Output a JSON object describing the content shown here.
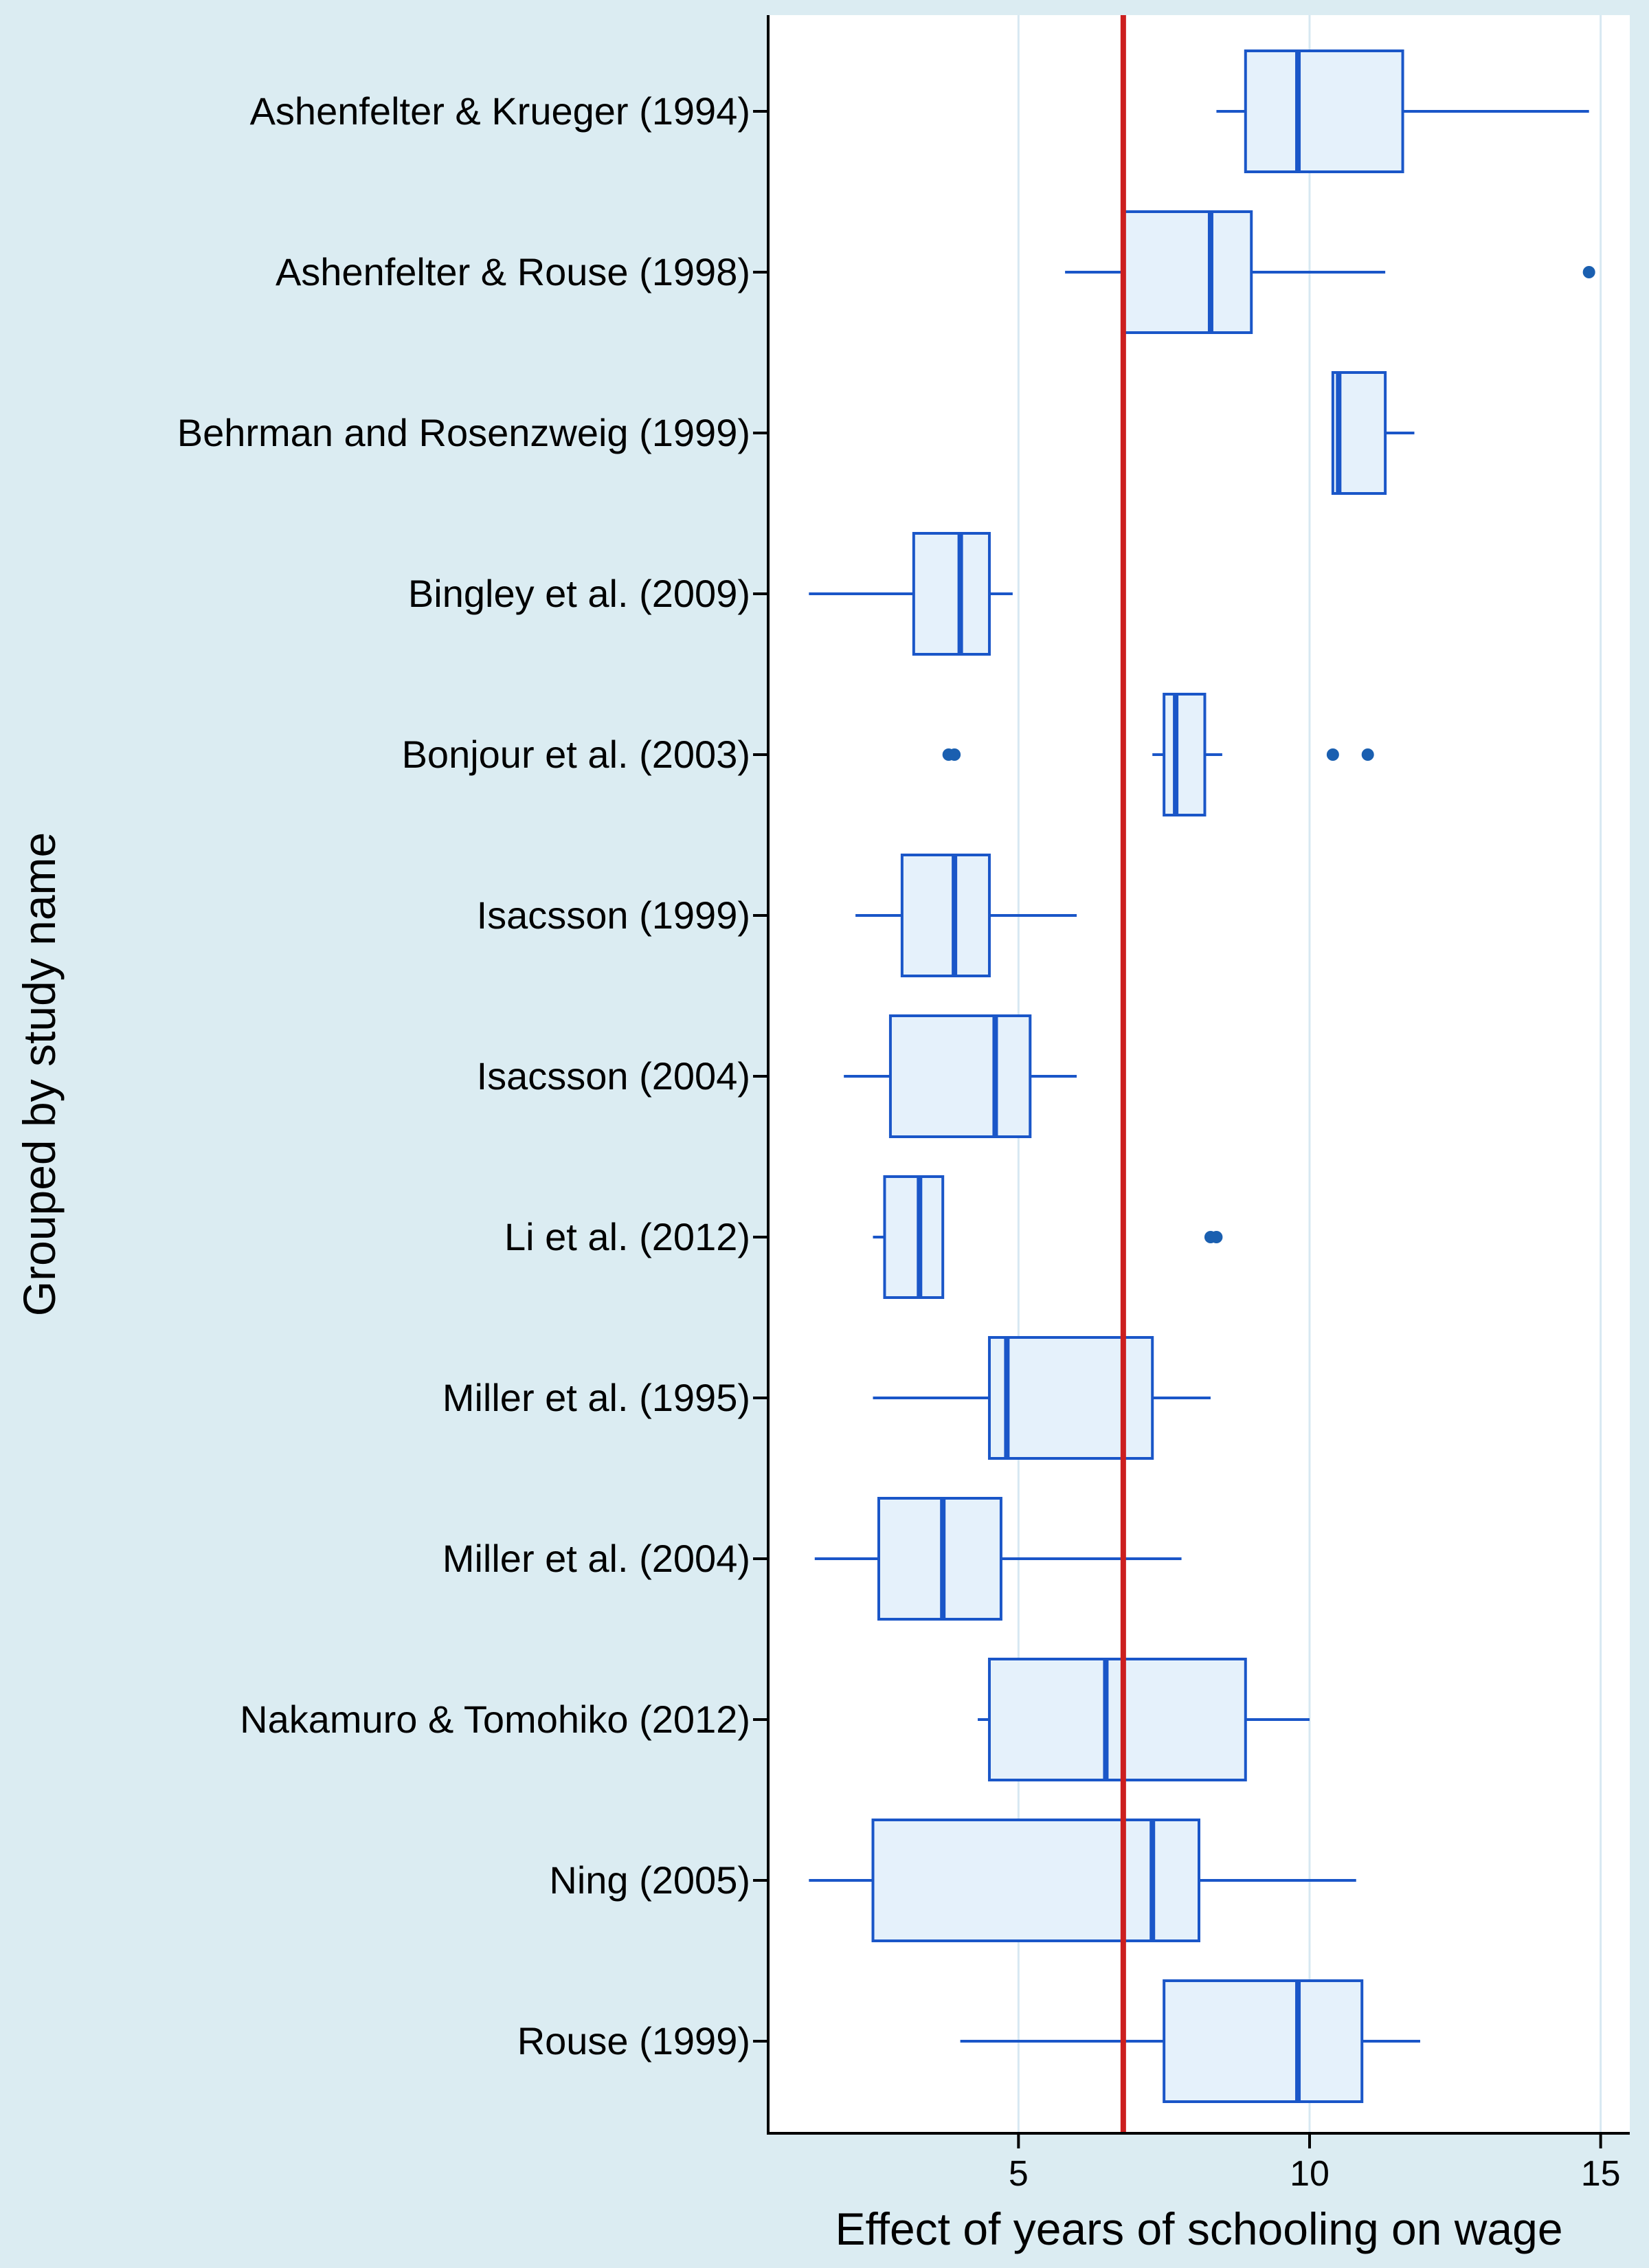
{
  "chart_data": {
    "type": "boxplot",
    "orientation": "horizontal",
    "xlabel": "Effect of years of schooling on wage",
    "ylabel": "Grouped by study name",
    "xlim": [
      0.7,
      15.5
    ],
    "xticks": [
      5,
      10,
      15
    ],
    "grid": "vertical",
    "reference_line": {
      "x": 6.8,
      "color": "#cc1f1f"
    },
    "colors": {
      "outer_background": "#dbecf2",
      "plot_background": "#ffffff",
      "box_fill": "#e5f1fb",
      "box_stroke": "#1a56c8",
      "median": "#1a56c8",
      "outlier": "#1a5fb0",
      "grid": "#d7e8f2"
    },
    "groups": [
      {
        "name": "Ashenfelter & Krueger (1994)",
        "whisker_low": 8.4,
        "q1": 8.9,
        "median": 9.8,
        "q3": 11.6,
        "whisker_high": 14.8,
        "outliers": []
      },
      {
        "name": "Ashenfelter & Rouse (1998)",
        "whisker_low": 5.8,
        "q1": 6.8,
        "median": 8.3,
        "q3": 9.0,
        "whisker_high": 11.3,
        "outliers": [
          14.8
        ]
      },
      {
        "name": "Behrman and Rosenzweig (1999)",
        "whisker_low": 10.4,
        "q1": 10.4,
        "median": 10.5,
        "q3": 11.3,
        "whisker_high": 11.8,
        "outliers": []
      },
      {
        "name": "Bingley et al. (2009)",
        "whisker_low": 1.4,
        "q1": 3.2,
        "median": 4.0,
        "q3": 4.5,
        "whisker_high": 4.9,
        "outliers": []
      },
      {
        "name": "Bonjour et al. (2003)",
        "whisker_low": 7.3,
        "q1": 7.5,
        "median": 7.7,
        "q3": 8.2,
        "whisker_high": 8.5,
        "outliers": [
          3.8,
          3.9,
          10.4,
          11.0
        ]
      },
      {
        "name": "Isacsson (1999)",
        "whisker_low": 2.2,
        "q1": 3.0,
        "median": 3.9,
        "q3": 4.5,
        "whisker_high": 6.0,
        "outliers": []
      },
      {
        "name": "Isacsson (2004)",
        "whisker_low": 2.0,
        "q1": 2.8,
        "median": 4.6,
        "q3": 5.2,
        "whisker_high": 6.0,
        "outliers": []
      },
      {
        "name": "Li et al. (2012)",
        "whisker_low": 2.5,
        "q1": 2.7,
        "median": 3.3,
        "q3": 3.7,
        "whisker_high": 3.7,
        "outliers": [
          8.3,
          8.4
        ]
      },
      {
        "name": "Miller et al. (1995)",
        "whisker_low": 2.5,
        "q1": 4.5,
        "median": 4.8,
        "q3": 7.3,
        "whisker_high": 8.3,
        "outliers": []
      },
      {
        "name": "Miller et al. (2004)",
        "whisker_low": 1.5,
        "q1": 2.6,
        "median": 3.7,
        "q3": 4.7,
        "whisker_high": 7.8,
        "outliers": []
      },
      {
        "name": "Nakamuro & Tomohiko (2012)",
        "whisker_low": 4.3,
        "q1": 4.5,
        "median": 6.5,
        "q3": 8.9,
        "whisker_high": 10.0,
        "outliers": []
      },
      {
        "name": "Ning (2005)",
        "whisker_low": 1.4,
        "q1": 2.5,
        "median": 7.3,
        "q3": 8.1,
        "whisker_high": 10.8,
        "outliers": []
      },
      {
        "name": "Rouse (1999)",
        "whisker_low": 4.0,
        "q1": 7.5,
        "median": 9.8,
        "q3": 10.9,
        "whisker_high": 11.9,
        "outliers": []
      }
    ]
  }
}
